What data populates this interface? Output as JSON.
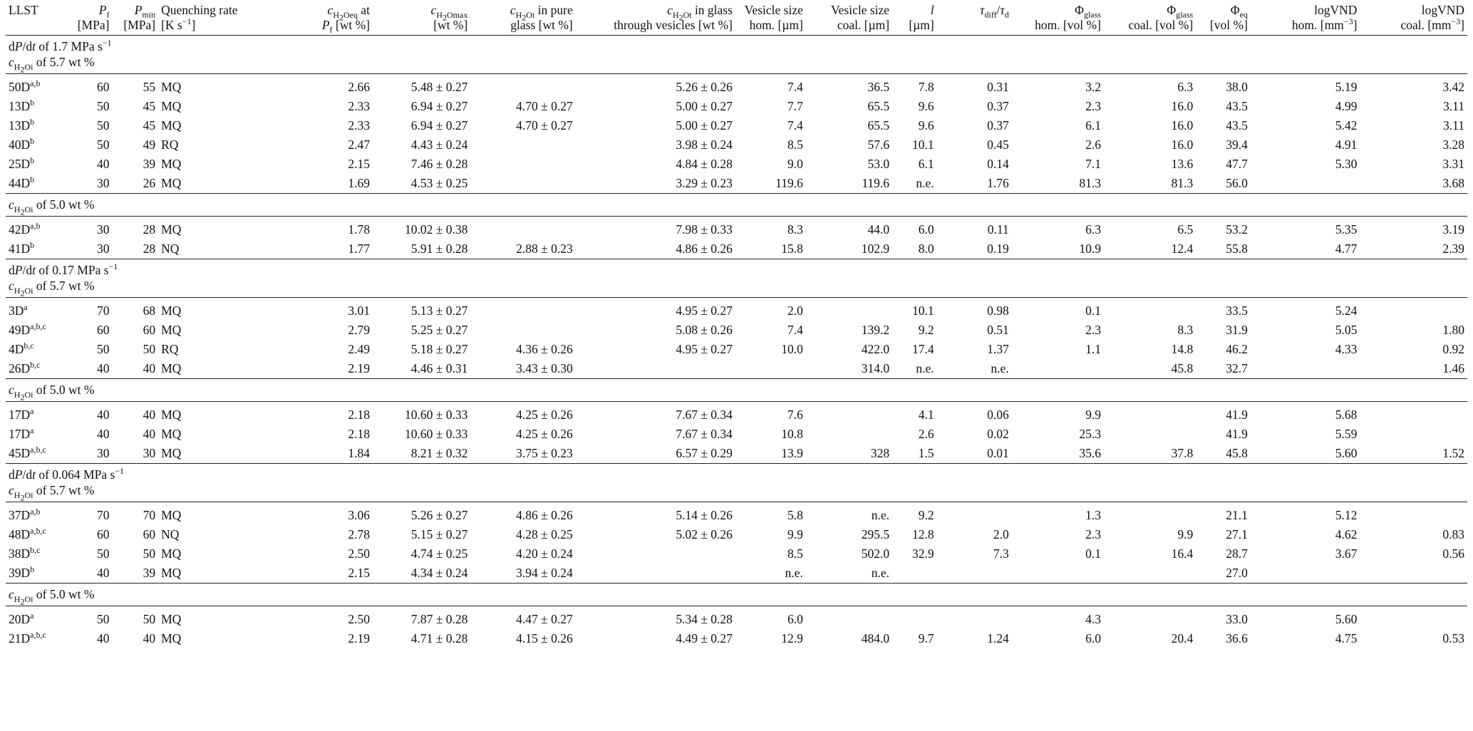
{
  "headers": [
    {
      "l1": "LLST",
      "l2": ""
    },
    {
      "l1": "P_f",
      "l2": "[MPa]"
    },
    {
      "l1": "P_min",
      "l2": "[MPa]"
    },
    {
      "l1": "Quenching rate",
      "l2": "[K s−1]"
    },
    {
      "l1": "cH2Oeq at",
      "l2": "P_f [wt %]"
    },
    {
      "l1": "cH2Omax",
      "l2": "[wt %]"
    },
    {
      "l1": "cH2Ot in pure",
      "l2": "glass [wt %]"
    },
    {
      "l1": "cH2Ot in glass",
      "l2": "through vesicles [wt %]"
    },
    {
      "l1": "Vesicle size",
      "l2": "hom. [µm]"
    },
    {
      "l1": "Vesicle size",
      "l2": "coal. [µm]"
    },
    {
      "l1": "l",
      "l2": "[µm]"
    },
    {
      "l1": "τdiff/τd",
      "l2": ""
    },
    {
      "l1": "Φglass",
      "l2": "hom. [vol %]"
    },
    {
      "l1": "Φglass",
      "l2": "coal. [vol %]"
    },
    {
      "l1": "Φeq",
      "l2": "[vol %]"
    },
    {
      "l1": "logVND",
      "l2": "hom. [mm−3]"
    },
    {
      "l1": "logVND",
      "l2": "coal. [mm−3]"
    }
  ],
  "sections": [
    {
      "rate": "of 1.7 MPa s−1",
      "conc": "of 5.7 wt %",
      "rows": [
        [
          "50D",
          "a,b",
          "60",
          "55",
          "MQ",
          "2.66",
          "5.48 ± 0.27",
          "",
          "5.26 ± 0.26",
          "7.4",
          "36.5",
          "7.8",
          "0.31",
          "3.2",
          "6.3",
          "38.0",
          "5.19",
          "3.42"
        ],
        [
          "13D",
          "b",
          "50",
          "45",
          "MQ",
          "2.33",
          "6.94 ± 0.27",
          "4.70 ± 0.27",
          "5.00 ± 0.27",
          "7.7",
          "65.5",
          "9.6",
          "0.37",
          "2.3",
          "16.0",
          "43.5",
          "4.99",
          "3.11"
        ],
        [
          "13D",
          "b",
          "50",
          "45",
          "MQ",
          "2.33",
          "6.94 ± 0.27",
          "4.70 ± 0.27",
          "5.00 ± 0.27",
          "7.4",
          "65.5",
          "9.6",
          "0.37",
          "6.1",
          "16.0",
          "43.5",
          "5.42",
          "3.11"
        ],
        [
          "40D",
          "b",
          "50",
          "49",
          "RQ",
          "2.47",
          "4.43 ± 0.24",
          "",
          "3.98 ± 0.24",
          "8.5",
          "57.6",
          "10.1",
          "0.45",
          "2.6",
          "16.0",
          "39.4",
          "4.91",
          "3.28"
        ],
        [
          "25D",
          "b",
          "40",
          "39",
          "MQ",
          "2.15",
          "7.46 ± 0.28",
          "",
          "4.84 ± 0.28",
          "9.0",
          "53.0",
          "6.1",
          "0.14",
          "7.1",
          "13.6",
          "47.7",
          "5.30",
          "3.31"
        ],
        [
          "44D",
          "b",
          "30",
          "26",
          "MQ",
          "1.69",
          "4.53 ± 0.25",
          "",
          "3.29 ± 0.23",
          "119.6",
          "119.6",
          "n.e.",
          "1.76",
          "81.3",
          "81.3",
          "56.0",
          "",
          "3.68"
        ]
      ]
    },
    {
      "rate": "",
      "conc": "of 5.0 wt %",
      "rows": [
        [
          "42D",
          "a,b",
          "30",
          "28",
          "MQ",
          "1.78",
          "10.02 ± 0.38",
          "",
          "7.98 ± 0.33",
          "8.3",
          "44.0",
          "6.0",
          "0.11",
          "6.3",
          "6.5",
          "53.2",
          "5.35",
          "3.19"
        ],
        [
          "41D",
          "b",
          "30",
          "28",
          "NQ",
          "1.77",
          "5.91 ± 0.28",
          "2.88 ± 0.23",
          "4.86 ± 0.26",
          "15.8",
          "102.9",
          "8.0",
          "0.19",
          "10.9",
          "12.4",
          "55.8",
          "4.77",
          "2.39"
        ]
      ]
    },
    {
      "rate": "of 0.17 MPa s−1",
      "conc": "of 5.7 wt %",
      "rows": [
        [
          "3D",
          "a",
          "70",
          "68",
          "MQ",
          "3.01",
          "5.13 ± 0.27",
          "",
          "4.95 ± 0.27",
          "2.0",
          "",
          "10.1",
          "0.98",
          "0.1",
          "",
          "33.5",
          "5.24",
          ""
        ],
        [
          "49D",
          "a,b,c",
          "60",
          "60",
          "MQ",
          "2.79",
          "5.25 ± 0.27",
          "",
          "5.08 ± 0.26",
          "7.4",
          "139.2",
          "9.2",
          "0.51",
          "2.3",
          "8.3",
          "31.9",
          "5.05",
          "1.80"
        ],
        [
          "4D",
          "b,c",
          "50",
          "50",
          "RQ",
          "2.49",
          "5.18 ± 0.27",
          "4.36 ± 0.26",
          "4.95 ± 0.27",
          "10.0",
          "422.0",
          "17.4",
          "1.37",
          "1.1",
          "14.8",
          "46.2",
          "4.33",
          "0.92"
        ],
        [
          "26D",
          "b,c",
          "40",
          "40",
          "MQ",
          "2.19",
          "4.46 ± 0.31",
          "3.43 ± 0.30",
          "",
          "",
          "314.0",
          "n.e.",
          "n.e.",
          "",
          "45.8",
          "32.7",
          "",
          "1.46"
        ]
      ]
    },
    {
      "rate": "",
      "conc": "of 5.0 wt %",
      "rows": [
        [
          "17D",
          "a",
          "40",
          "40",
          "MQ",
          "2.18",
          "10.60 ± 0.33",
          "4.25 ± 0.26",
          "7.67 ± 0.34",
          "7.6",
          "",
          "4.1",
          "0.06",
          "9.9",
          "",
          "41.9",
          "5.68",
          ""
        ],
        [
          "17D",
          "a",
          "40",
          "40",
          "MQ",
          "2.18",
          "10.60 ± 0.33",
          "4.25 ± 0.26",
          "7.67 ± 0.34",
          "10.8",
          "",
          "2.6",
          "0.02",
          "25.3",
          "",
          "41.9",
          "5.59",
          ""
        ],
        [
          "45D",
          "a,b,c",
          "30",
          "30",
          "MQ",
          "1.84",
          "8.21 ± 0.32",
          "3.75 ± 0.23",
          "6.57 ± 0.29",
          "13.9",
          "328",
          "1.5",
          "0.01",
          "35.6",
          "37.8",
          "45.8",
          "5.60",
          "1.52"
        ]
      ]
    },
    {
      "rate": "of 0.064 MPa s−1",
      "conc": "of 5.7 wt %",
      "rows": [
        [
          "37D",
          "a,b",
          "70",
          "70",
          "MQ",
          "3.06",
          "5.26 ± 0.27",
          "4.86 ± 0.26",
          "5.14 ± 0.26",
          "5.8",
          "n.e.",
          "9.2",
          "",
          "1.3",
          "",
          "21.1",
          "5.12",
          ""
        ],
        [
          "48D",
          "a,b,c",
          "60",
          "60",
          "NQ",
          "2.78",
          "5.15 ± 0.27",
          "4.28 ± 0.25",
          "5.02 ± 0.26",
          "9.9",
          "295.5",
          "12.8",
          "2.0",
          "2.3",
          "9.9",
          "27.1",
          "4.62",
          "0.83"
        ],
        [
          "38D",
          "b,c",
          "50",
          "50",
          "MQ",
          "2.50",
          "4.74 ± 0.25",
          "4.20 ± 0.24",
          "",
          "8.5",
          "502.0",
          "32.9",
          "7.3",
          "0.1",
          "16.4",
          "28.7",
          "3.67",
          "0.56"
        ],
        [
          "39D",
          "b",
          "40",
          "39",
          "MQ",
          "2.15",
          "4.34 ± 0.24",
          "3.94 ± 0.24",
          "",
          "n.e.",
          "n.e.",
          "",
          "",
          "",
          "",
          "27.0",
          "",
          ""
        ]
      ]
    },
    {
      "rate": "",
      "conc": "of 5.0 wt %",
      "rows": [
        [
          "20D",
          "a",
          "50",
          "50",
          "MQ",
          "2.50",
          "7.87 ± 0.28",
          "4.47 ± 0.27",
          "5.34 ± 0.28",
          "6.0",
          "",
          "",
          "",
          "4.3",
          "",
          "33.0",
          "5.60",
          ""
        ],
        [
          "21D",
          "a,b,c",
          "40",
          "40",
          "MQ",
          "2.19",
          "4.71 ± 0.28",
          "4.15 ± 0.26",
          "4.49 ± 0.27",
          "12.9",
          "484.0",
          "9.7",
          "1.24",
          "6.0",
          "20.4",
          "36.6",
          "4.75",
          "0.53"
        ]
      ]
    }
  ]
}
